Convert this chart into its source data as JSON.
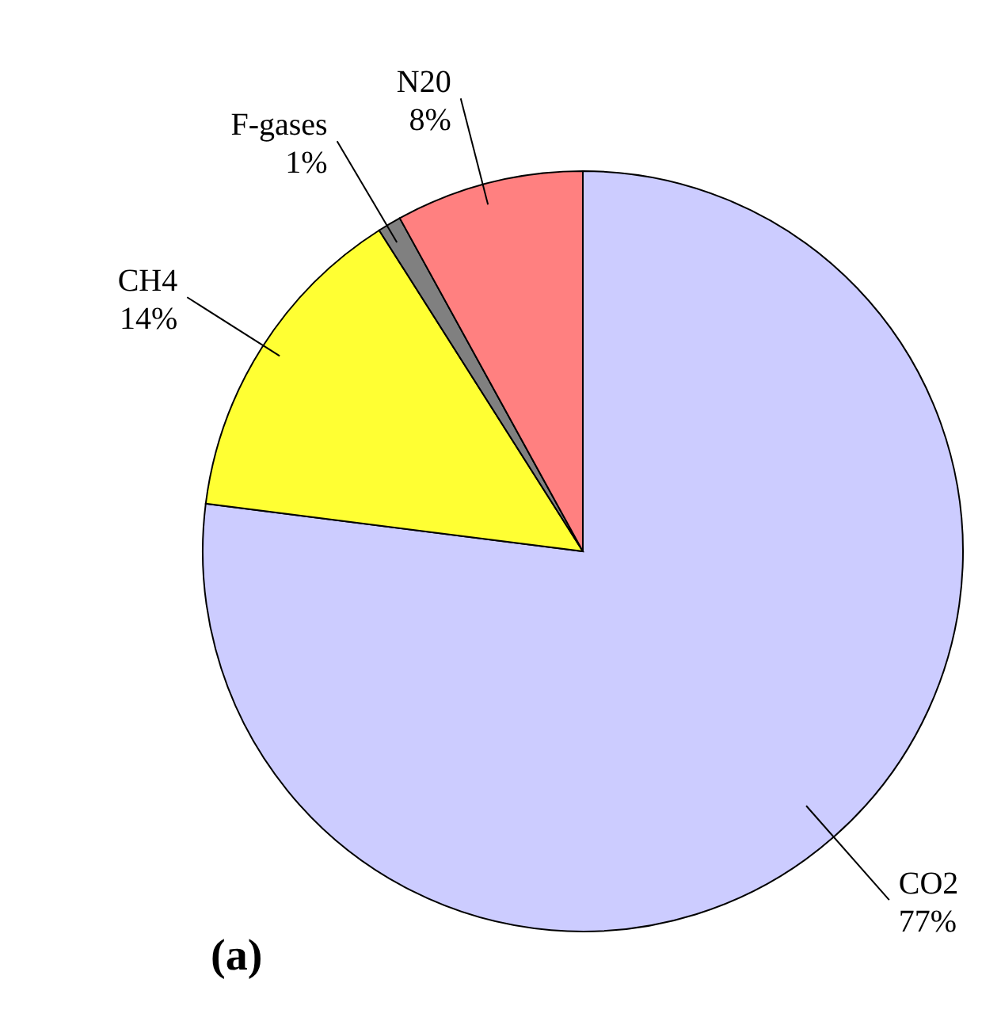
{
  "chart_data": {
    "type": "pie",
    "categories": [
      "CO2",
      "CH4",
      "F-gases",
      "N20"
    ],
    "values": [
      77,
      14,
      1,
      8
    ],
    "colors": [
      "#ccccff",
      "#ffff33",
      "#808080",
      "#ff8080"
    ],
    "value_labels": [
      "77%",
      "14%",
      "1%",
      "8%"
    ],
    "annotations": [
      "(a)"
    ]
  }
}
